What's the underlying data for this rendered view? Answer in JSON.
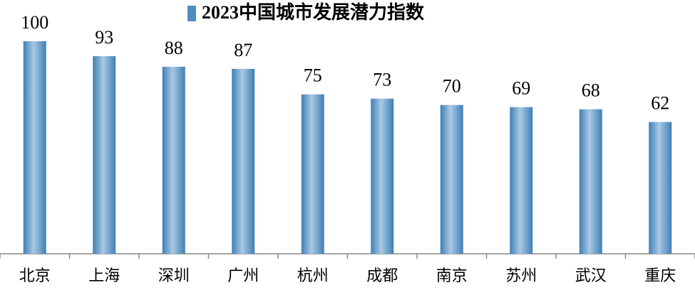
{
  "chart_data": {
    "type": "bar",
    "categories": [
      "北京",
      "上海",
      "深圳",
      "广州",
      "杭州",
      "成都",
      "南京",
      "苏州",
      "武汉",
      "重庆"
    ],
    "series": [
      {
        "name": "2023中国城市发展潜力指数",
        "color": "#4f8dc0",
        "values": [
          100,
          93,
          88,
          87,
          75,
          73,
          70,
          69,
          68,
          62
        ]
      }
    ]
  }
}
